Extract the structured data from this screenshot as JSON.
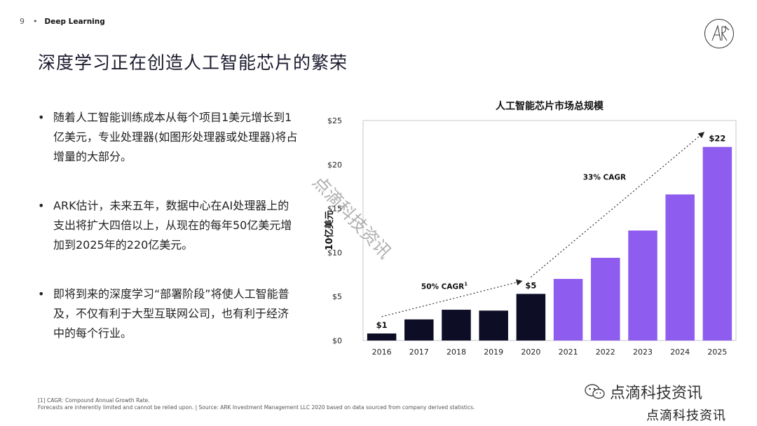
{
  "header": {
    "page_number": "9",
    "separator": "•",
    "section": "Deep Learning"
  },
  "title": "深度学习正在创造人工智能芯片的繁荣",
  "bullets": [
    {
      "mark": "•",
      "text": "随着人工智能训练成本从每个项目1美元增长到1亿美元，专业处理器(如图形处理器或处理器)将占增量的大部分。"
    },
    {
      "mark": "•",
      "text": "ARK估计，未来五年，数据中心在AI处理器上的支出将扩大四倍以上，从现在的每年50亿美元增加到2025年的220亿美元。"
    },
    {
      "mark": "•",
      "text": "即将到来的深度学习“部署阶段”将使人工智能普及，不仅有利于大型互联网公司，也有利于经济中的每个行业。"
    }
  ],
  "chart_data": {
    "type": "bar",
    "title": "人工智能芯片市场总规模",
    "ylabel": "10亿美元",
    "xlabel": "",
    "categories": [
      "2016",
      "2017",
      "2018",
      "2019",
      "2020",
      "2021",
      "2022",
      "2023",
      "2024",
      "2025"
    ],
    "values": [
      0.8,
      2.4,
      3.5,
      3.4,
      5.3,
      7.0,
      9.4,
      12.5,
      16.6,
      22.0
    ],
    "ylim": [
      0,
      25
    ],
    "yticks": [
      "$0",
      "$5",
      "$10",
      "$15",
      "$20",
      "$25"
    ],
    "ytick_values": [
      0,
      5,
      10,
      15,
      20,
      25
    ],
    "bar_colors": [
      "#0d0d26",
      "#0d0d26",
      "#0d0d26",
      "#0d0d26",
      "#0d0d26",
      "#8f5cf0",
      "#8f5cf0",
      "#8f5cf0",
      "#8f5cf0",
      "#8f5cf0"
    ],
    "data_labels": [
      {
        "index": 0,
        "text": "$1"
      },
      {
        "index": 4,
        "text": "$5"
      },
      {
        "index": 9,
        "text": "$22"
      }
    ],
    "annotations": [
      {
        "text": "50% CAGR",
        "superscript": "1",
        "from_index": 0,
        "to_index": 4
      },
      {
        "text": "33% CAGR",
        "superscript": "",
        "from_index": 4,
        "to_index": 9
      }
    ],
    "grid": false
  },
  "footnote": {
    "line1": "[1] CAGR: Compound Annual Growth Rate.",
    "line2": "Forecasts are inherently limited and cannot be relied upon.  |  Source: ARK Investment Management LLC 2020 based on data sourced from company derived statistics."
  },
  "watermarks": {
    "chat_label": "点滴科技资讯",
    "bottom_label": "点滴科技资讯",
    "diagonal_label": "点滴科技资讯"
  },
  "logo_text": "AR"
}
